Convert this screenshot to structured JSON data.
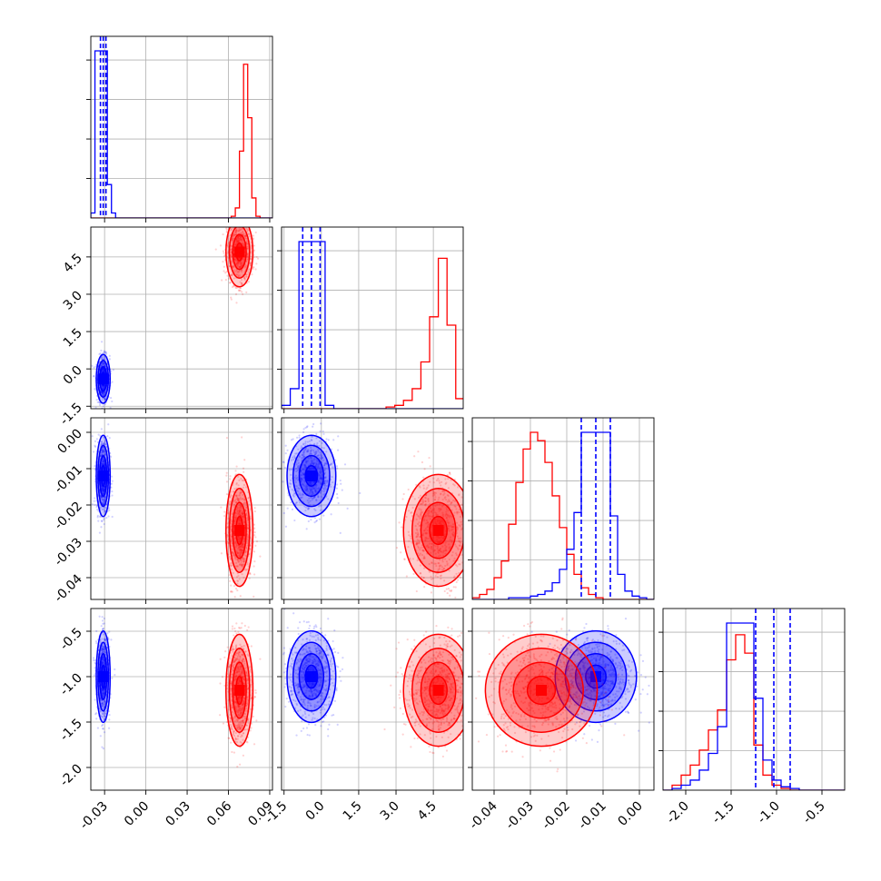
{
  "chart_data": {
    "type": "corner",
    "colors": {
      "blue": "#0000ff",
      "red": "#ff0000",
      "grid": "#b0b0b0"
    },
    "parameters": [
      {
        "range": [
          -0.04,
          0.092
        ],
        "ticks": [
          "-0.03",
          "0.00",
          "0.03",
          "0.06",
          "0.09"
        ],
        "tick_values": [
          -0.03,
          0.0,
          0.03,
          0.06,
          0.09
        ]
      },
      {
        "range": [
          -1.6,
          5.7
        ],
        "ticks": [
          "-1.5",
          "0.0",
          "1.5",
          "3.0",
          "4.5"
        ],
        "tick_values": [
          -1.5,
          0.0,
          1.5,
          3.0,
          4.5
        ]
      },
      {
        "range": [
          -0.046,
          0.004
        ],
        "ticks": [
          "-0.04",
          "-0.03",
          "-0.02",
          "-0.01",
          "0.00"
        ],
        "tick_values": [
          -0.04,
          -0.03,
          -0.02,
          -0.01,
          0.0
        ]
      },
      {
        "range": [
          -2.25,
          -0.25
        ],
        "ticks": [
          "-2.0",
          "-1.5",
          "-1.0",
          "-0.5"
        ],
        "tick_values": [
          -2.0,
          -1.5,
          -1.0,
          -0.5
        ]
      }
    ],
    "series": [
      {
        "color": "blue",
        "mean": [
          -0.031,
          -0.4,
          -0.012,
          -1.0
        ],
        "sd": [
          0.0018,
          0.35,
          0.004,
          0.18
        ],
        "quantiles": [
          [
            -0.033,
            -0.031,
            -0.029
          ],
          [
            -0.75,
            -0.4,
            -0.05
          ],
          [
            -0.016,
            -0.012,
            -0.008
          ],
          [
            -1.23,
            -1.03,
            -0.85
          ]
        ]
      },
      {
        "color": "red",
        "mean": [
          0.068,
          4.7,
          -0.027,
          -1.15
        ],
        "sd": [
          0.0035,
          0.5,
          0.0055,
          0.22
        ]
      }
    ],
    "histograms": [
      {
        "bins": [
          -0.04,
          -0.037,
          -0.034,
          -0.031,
          -0.028,
          -0.025,
          -0.022,
          -0.019,
          -0.016,
          -0.013,
          -0.01,
          -0.007,
          -0.004,
          -0.001,
          0.002,
          0.005,
          0.008,
          0.011,
          0.014,
          0.017,
          0.02,
          0.023,
          0.026,
          0.029,
          0.032,
          0.035,
          0.038,
          0.041,
          0.044,
          0.047,
          0.05,
          0.053,
          0.056,
          0.059,
          0.062,
          0.065,
          0.068,
          0.071,
          0.074,
          0.077,
          0.08,
          0.083,
          0.086,
          0.089,
          0.092
        ],
        "blue": [
          0.03,
          1.0,
          1.0,
          1.0,
          0.2,
          0.03,
          0,
          0,
          0,
          0,
          0,
          0,
          0,
          0,
          0,
          0,
          0,
          0,
          0,
          0,
          0,
          0,
          0,
          0,
          0,
          0,
          0,
          0,
          0,
          0,
          0,
          0,
          0,
          0,
          0,
          0,
          0,
          0,
          0,
          0,
          0,
          0,
          0,
          0
        ],
        "red": [
          0,
          0,
          0,
          0,
          0,
          0,
          0,
          0,
          0,
          0,
          0,
          0,
          0,
          0,
          0,
          0,
          0,
          0,
          0,
          0,
          0,
          0,
          0,
          0,
          0,
          0,
          0,
          0,
          0,
          0,
          0,
          0,
          0,
          0,
          0.01,
          0.06,
          0.4,
          0.92,
          0.6,
          0.12,
          0.01,
          0,
          0,
          0
        ]
      },
      {
        "bins": [
          -1.6,
          -1.25,
          -0.9,
          -0.55,
          -0.2,
          0.15,
          0.5,
          0.85,
          1.2,
          1.55,
          1.9,
          2.25,
          2.6,
          2.95,
          3.3,
          3.65,
          4.0,
          4.35,
          4.7,
          5.05,
          5.4,
          5.75
        ],
        "blue": [
          0.02,
          0.12,
          1.0,
          1.0,
          1.0,
          0.02,
          0,
          0,
          0,
          0,
          0,
          0,
          0,
          0,
          0,
          0,
          0,
          0,
          0,
          0,
          0
        ],
        "red": [
          0,
          0,
          0,
          0,
          0,
          0,
          0,
          0,
          0,
          0,
          0,
          0,
          0.01,
          0.02,
          0.05,
          0.12,
          0.28,
          0.55,
          0.9,
          0.5,
          0.06
        ]
      },
      {
        "bins": [
          -0.046,
          -0.044,
          -0.042,
          -0.04,
          -0.038,
          -0.036,
          -0.034,
          -0.032,
          -0.03,
          -0.028,
          -0.026,
          -0.024,
          -0.022,
          -0.02,
          -0.018,
          -0.016,
          -0.014,
          -0.012,
          -0.01,
          -0.008,
          -0.006,
          -0.004,
          -0.002,
          0.0,
          0.002,
          0.004
        ],
        "blue": [
          0,
          0,
          0,
          0,
          0,
          0.01,
          0.01,
          0.01,
          0.02,
          0.03,
          0.05,
          0.1,
          0.18,
          0.3,
          0.52,
          1.0,
          1.0,
          1.0,
          1.0,
          0.5,
          0.15,
          0.05,
          0.02,
          0.01,
          0
        ],
        "red": [
          0.01,
          0.03,
          0.06,
          0.13,
          0.23,
          0.45,
          0.7,
          0.9,
          1.0,
          0.95,
          0.82,
          0.62,
          0.43,
          0.27,
          0.15,
          0.07,
          0.03,
          0.01,
          0,
          0,
          0,
          0,
          0,
          0,
          0
        ]
      },
      {
        "bins": [
          -2.25,
          -2.15,
          -2.05,
          -1.95,
          -1.85,
          -1.75,
          -1.65,
          -1.55,
          -1.45,
          -1.35,
          -1.25,
          -1.15,
          -1.05,
          -0.95,
          -0.85,
          -0.75,
          -0.65,
          -0.55,
          -0.45,
          -0.35,
          -0.25
        ],
        "blue": [
          0,
          0.01,
          0.03,
          0.06,
          0.12,
          0.22,
          0.38,
          1.0,
          1.0,
          1.0,
          0.55,
          0.18,
          0.06,
          0.02,
          0.01,
          0,
          0,
          0,
          0,
          0
        ],
        "red": [
          0,
          0.03,
          0.09,
          0.15,
          0.24,
          0.36,
          0.48,
          0.78,
          0.93,
          0.82,
          0.27,
          0.09,
          0.03,
          0.01,
          0,
          0,
          0,
          0,
          0,
          0
        ]
      }
    ],
    "contour_sigmas": [
      0.5,
      1.0,
      1.5,
      2.0
    ],
    "scatter_points_per_series": 700,
    "grid": true,
    "legend": "none"
  }
}
